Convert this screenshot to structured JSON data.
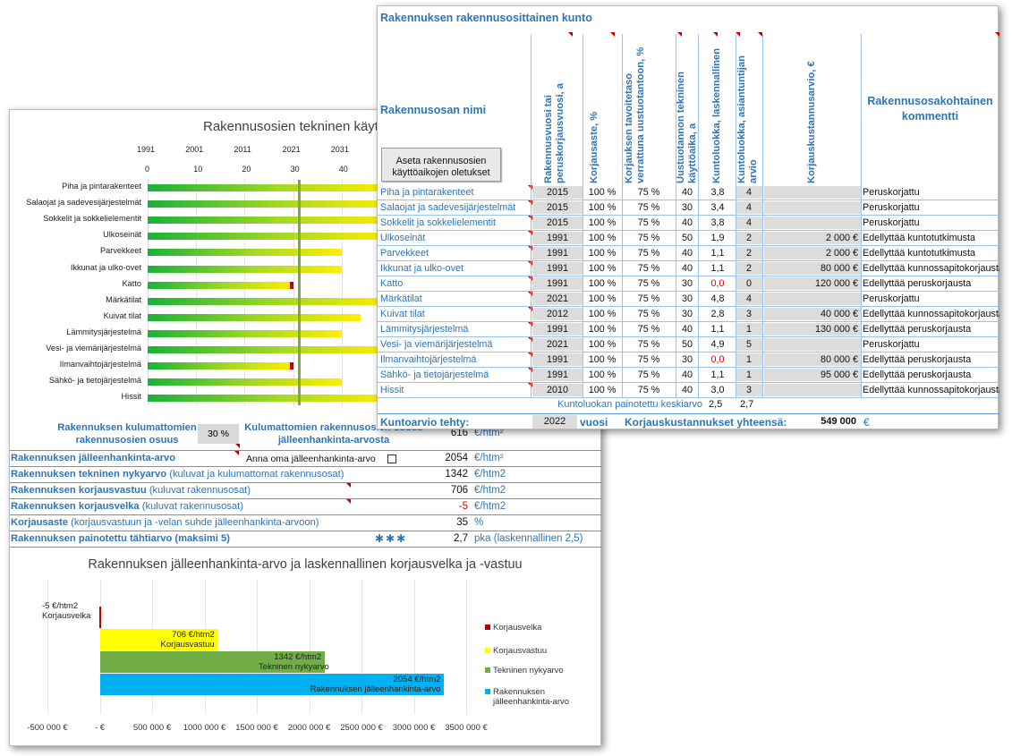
{
  "lifespan_chart": {
    "title": "Rakennusosien tekninen käyttöikä",
    "year_ticks": [
      "1991",
      "2001",
      "2011",
      "2021",
      "2031"
    ],
    "age_ticks": [
      "0",
      "10",
      "20",
      "30",
      "40"
    ],
    "rows": [
      {
        "name": "Piha ja pintarakenteet",
        "years": 50,
        "overdue": false
      },
      {
        "name": "Salaojat ja sadevesijärjestelmät",
        "years": 50,
        "overdue": false
      },
      {
        "name": "Sokkelit ja sokkelielementit",
        "years": 50,
        "overdue": false
      },
      {
        "name": "Ulkoseinät",
        "years": 50,
        "overdue": false
      },
      {
        "name": "Parvekkeet",
        "years": 40,
        "overdue": false
      },
      {
        "name": "Ikkunat ja ulko-ovet",
        "years": 40,
        "overdue": false
      },
      {
        "name": "Katto",
        "years": 30,
        "overdue": true
      },
      {
        "name": "Märkätilat",
        "years": 50,
        "overdue": false
      },
      {
        "name": "Kuivat tilat",
        "years": 44,
        "overdue": false
      },
      {
        "name": "Lämmitysjärjestelmä",
        "years": 40,
        "overdue": false
      },
      {
        "name": "Vesi- ja viemärijärjestelmä",
        "years": 50,
        "overdue": false
      },
      {
        "name": "Ilmanvaihtojärjestelmä",
        "years": 30,
        "overdue": true
      },
      {
        "name": "Sähkö- ja tietojärjestelmä",
        "years": 40,
        "overdue": false
      },
      {
        "name": "Hissit",
        "years": 50,
        "overdue": false
      }
    ],
    "current_age": 31
  },
  "summary": {
    "unworn_share_label": "Rakennuksen kulumattomien rakennusosien osuus",
    "unworn_share_value": "30 %",
    "unworn_replacement_label": "Kulumattomien rakennusosien osuus jälleenhankinta-arvosta",
    "unworn_replacement_value": "616",
    "unit_htm2_sup": "€/htm²",
    "replacement_label": "Rakennuksen jälleenhankinta-arvo",
    "own_value_label": "Anna oma jälleenhankinta-arvo",
    "replacement_value": "2054",
    "technical_value_label": "Rakennuksen tekninen nykyarvo",
    "technical_value_sub": "(kuluvat ja kulumattomat rakennusosat)",
    "technical_value": "1342",
    "unit_htm2": "€/htm2",
    "liability_label": "Rakennuksen korjausvastuu",
    "liability_sub": "(kuluvat rakennusosat)",
    "liability_value": "706",
    "debt_label": "Rakennuksen korjausvelka",
    "debt_sub": "(kuluvat rakennusosat)",
    "debt_value": "-5",
    "ratio_label": "Korjausaste",
    "ratio_sub": "(korjausvastuun ja -velan suhde jälleenhankinta-arvoon)",
    "ratio_value": "35",
    "ratio_unit": "%",
    "star_label": "Rakennuksen painotettu tähtiarvo (maksimi 5)",
    "stars": "✱✱✱",
    "star_value": "2,7",
    "star_unit": "pka (laskennallinen 2,5)"
  },
  "chart_data": {
    "type": "bar",
    "orientation": "horizontal",
    "title": "Rakennuksen jälleenhankinta-arvo ja laskennallinen korjausvelka ja -vastuu",
    "categories": [
      "Korjausvelka",
      "Korjausvastuu",
      "Tekninen nykyarvo",
      "Rakennuksen jälleenhankinta-arvo"
    ],
    "values": [
      -8000,
      1130000,
      2150000,
      3290000
    ],
    "unit_labels": [
      "-5 €/htm2",
      "706 €/htm2",
      "1342 €/htm2",
      "2054 €/htm2"
    ],
    "colors": [
      "#c00000",
      "#ffff00",
      "#70ad47",
      "#00b0f0"
    ],
    "xlim": [
      -500000,
      3500000
    ],
    "xticks": [
      -500000,
      0,
      500000,
      1000000,
      1500000,
      2000000,
      2500000,
      3000000,
      3500000
    ],
    "xtick_labels": [
      "-500 000 €",
      "-   €",
      "500 000 €",
      "1000 000 €",
      "1500 000 €",
      "2000 000 €",
      "2500 000 €",
      "3000 000 €",
      "3500 000 €"
    ],
    "legend": [
      "Korjausvelka",
      "Korjausvastuu",
      "Tekninen nykyarvo",
      "Rakennuksen jälleenhankinta-arvo"
    ],
    "legend_position": "right"
  },
  "condition_table": {
    "title": "Rakennuksen rakennusosittainen kunto",
    "name_header": "Rakennusosan nimi",
    "col_headers": {
      "year": "Rakennusvuosi tai peruskorjausvuosi, a",
      "cond": "Korjausaste, %",
      "target": "Korjauksen tavoitetaso verrattuna uustuotantoon, %",
      "life": "Uustuotannon tekninen käyttöaika, a",
      "calc": "Kuntoluokka, laskennallinen",
      "expert": "Kuntoluokka, asiantuntijan arvio",
      "cost": "Korjauskustannusarvio, €"
    },
    "comment_header": "Rakennusosakohtainen kommentti",
    "defaults_button": "Aseta rakennusosien käyttöaikojen oletukset",
    "rows": [
      {
        "name": "Piha ja pintarakenteet",
        "year": "2015",
        "cond": "100 %",
        "target": "75 %",
        "life": "40",
        "calc": "3,8",
        "expert": "4",
        "cost": "",
        "comment": "Peruskorjattu"
      },
      {
        "name": "Salaojat ja sadevesijärjestelmät",
        "year": "2015",
        "cond": "100 %",
        "target": "75 %",
        "life": "30",
        "calc": "3,4",
        "expert": "4",
        "cost": "",
        "comment": "Peruskorjattu"
      },
      {
        "name": "Sokkelit ja sokkelielementit",
        "year": "2015",
        "cond": "100 %",
        "target": "75 %",
        "life": "40",
        "calc": "3,8",
        "expert": "4",
        "cost": "",
        "comment": "Peruskorjattu"
      },
      {
        "name": "Ulkoseinät",
        "year": "1991",
        "cond": "100 %",
        "target": "75 %",
        "life": "50",
        "calc": "1,9",
        "expert": "2",
        "cost": "2 000 €",
        "comment": "Edellyttää kuntotutkimusta"
      },
      {
        "name": "Parvekkeet",
        "year": "1991",
        "cond": "100 %",
        "target": "75 %",
        "life": "40",
        "calc": "1,1",
        "expert": "2",
        "cost": "2 000 €",
        "comment": "Edellyttää kuntotutkimusta"
      },
      {
        "name": "Ikkunat ja ulko-ovet",
        "year": "1991",
        "cond": "100 %",
        "target": "75 %",
        "life": "40",
        "calc": "1,1",
        "expert": "2",
        "cost": "80 000 €",
        "comment": "Edellyttää kunnossapitokorjausta"
      },
      {
        "name": "Katto",
        "year": "1991",
        "cond": "100 %",
        "target": "75 %",
        "life": "30",
        "calc": "0,0",
        "expert": "0",
        "cost": "120 000 €",
        "comment": "Edellyttää peruskorjausta"
      },
      {
        "name": "Märkätilat",
        "year": "2021",
        "cond": "100 %",
        "target": "75 %",
        "life": "30",
        "calc": "4,8",
        "expert": "4",
        "cost": "",
        "comment": "Peruskorjattu"
      },
      {
        "name": "Kuivat tilat",
        "year": "2012",
        "cond": "100 %",
        "target": "75 %",
        "life": "30",
        "calc": "2,8",
        "expert": "3",
        "cost": "40 000 €",
        "comment": "Edellyttää kunnossapitokorjausta"
      },
      {
        "name": "Lämmitysjärjestelmä",
        "year": "1991",
        "cond": "100 %",
        "target": "75 %",
        "life": "40",
        "calc": "1,1",
        "expert": "1",
        "cost": "130 000 €",
        "comment": "Edellyttää peruskorjausta"
      },
      {
        "name": "Vesi- ja viemärijärjestelmä",
        "year": "2021",
        "cond": "100 %",
        "target": "75 %",
        "life": "50",
        "calc": "4,9",
        "expert": "5",
        "cost": "",
        "comment": "Peruskorjattu"
      },
      {
        "name": "Ilmanvaihtojärjestelmä",
        "year": "1991",
        "cond": "100 %",
        "target": "75 %",
        "life": "30",
        "calc": "0,0",
        "expert": "1",
        "cost": "80 000 €",
        "comment": "Edellyttää peruskorjausta"
      },
      {
        "name": "Sähkö- ja tietojärjestelmä",
        "year": "1991",
        "cond": "100 %",
        "target": "75 %",
        "life": "40",
        "calc": "1,1",
        "expert": "1",
        "cost": "95 000 €",
        "comment": "Edellyttää peruskorjausta"
      },
      {
        "name": "Hissit",
        "year": "2010",
        "cond": "100 %",
        "target": "75 %",
        "life": "40",
        "calc": "3,0",
        "expert": "3",
        "cost": "",
        "comment": "Edellyttää kunnossapitokorjausta"
      }
    ],
    "weighted_avg_label": "Kuntoluokan painotettu keskiarvo",
    "weighted_avg_calc": "2,5",
    "weighted_avg_expert": "2,7",
    "assessed_label": "Kuntoarvio tehty:",
    "assessed_year": "2022",
    "assessed_unit": "vuosi",
    "total_label": "Korjauskustannukset yhteensä:",
    "total_value": "549 000",
    "total_unit": "€"
  }
}
